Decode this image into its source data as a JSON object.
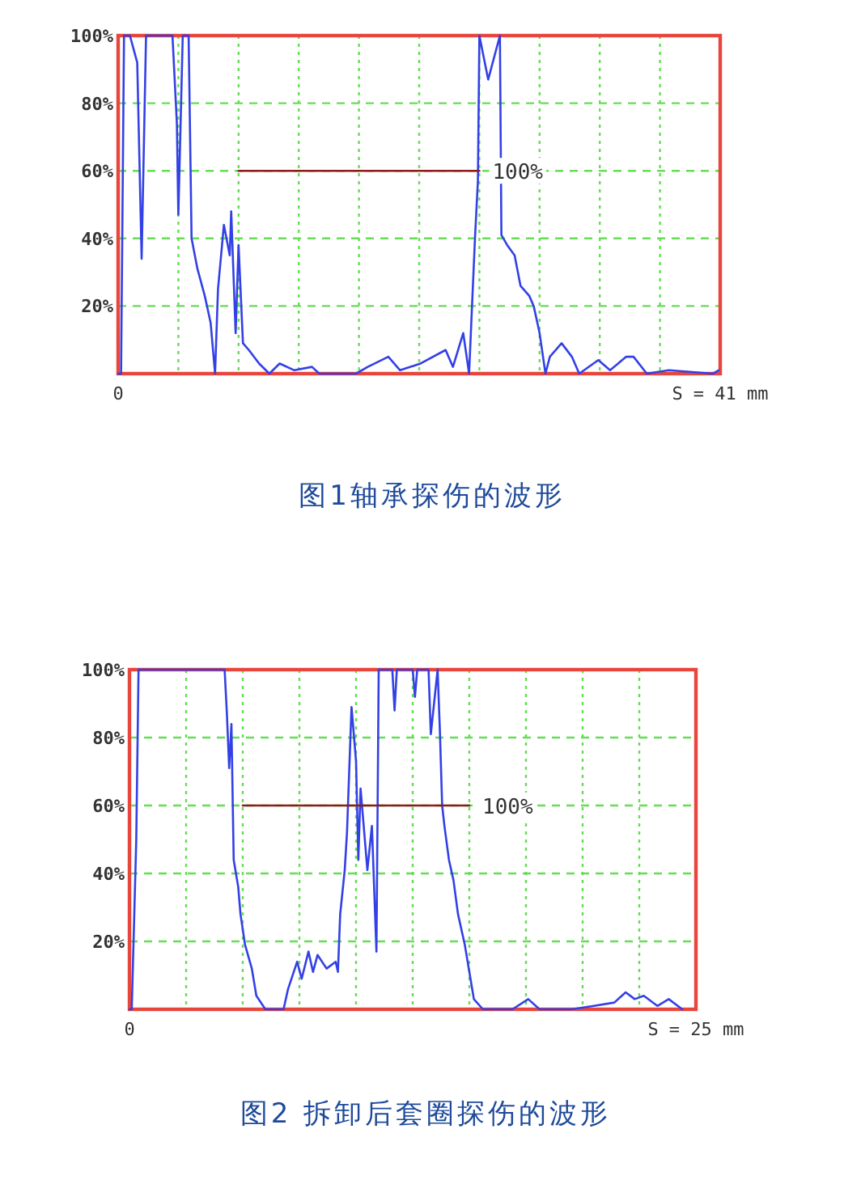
{
  "chart_data": [
    {
      "type": "line",
      "title": "图1轴承探伤的波形",
      "xlim": [
        0,
        41
      ],
      "xticks": [
        {
          "value": 0,
          "label": "0"
        },
        {
          "value": 4.1,
          "label": null
        },
        {
          "value": 8.2,
          "label": null
        },
        {
          "value": 12.3,
          "label": null
        },
        {
          "value": 16.4,
          "label": null
        },
        {
          "value": 20.5,
          "label": null
        },
        {
          "value": 24.6,
          "label": null
        },
        {
          "value": 28.7,
          "label": null
        },
        {
          "value": 32.8,
          "label": null
        },
        {
          "value": 36.9,
          "label": null
        },
        {
          "value": 41,
          "label": "S = 41 mm"
        }
      ],
      "ylim": [
        0,
        100
      ],
      "yticks": [
        {
          "value": 20,
          "label": "20%"
        },
        {
          "value": 40,
          "label": "40%"
        },
        {
          "value": 60,
          "label": "60%"
        },
        {
          "value": 80,
          "label": "80%"
        },
        {
          "value": 100,
          "label": "100%"
        }
      ],
      "grid": true,
      "series": [
        {
          "color": "#3340e6",
          "x": [
            0,
            0.2,
            0.4,
            0.8,
            1.3,
            1.6,
            1.9,
            3.7,
            4.0,
            4.1,
            4.4,
            4.8,
            5.0,
            5.4,
            5.9,
            6.3,
            6.6,
            6.8,
            7.2,
            7.6,
            7.7,
            8.0,
            8.2,
            8.5,
            8.9,
            9.6,
            10.3,
            11.0,
            12.0,
            13.2,
            13.7,
            16.2,
            17.0,
            18.4,
            19.2,
            20.6,
            22.3,
            22.8,
            23.5,
            23.9,
            24.1,
            24.3,
            24.5,
            24.6,
            25.2,
            26.0,
            26.1,
            26.5,
            27.0,
            27.4,
            28.0,
            28.3,
            28.7,
            29.1,
            29.4,
            30.2,
            30.9,
            31.4,
            32.7,
            33.5,
            34.6,
            35.1,
            36.0,
            37.5,
            40.5,
            40.9
          ],
          "values": [
            0,
            0,
            100,
            100,
            92,
            34,
            100,
            100,
            74,
            47,
            100,
            100,
            40,
            31,
            23,
            15,
            0,
            25,
            44,
            35,
            48,
            12,
            38,
            9,
            7,
            3,
            0,
            3,
            1,
            2,
            0,
            0,
            2,
            5,
            1,
            3,
            7,
            2,
            12,
            0,
            20,
            40,
            57,
            100,
            87,
            100,
            41,
            38,
            35,
            26,
            23,
            20,
            12,
            0,
            5,
            9,
            5,
            0,
            4,
            1,
            5,
            5,
            0,
            1,
            0,
            1
          ]
        },
        {
          "color": "#8b1c1c",
          "x": [
            8.2,
            24.6
          ],
          "values": [
            60,
            60
          ]
        }
      ],
      "annotations": [
        {
          "text": "100%",
          "x": 24.6,
          "y": 60
        }
      ]
    },
    {
      "type": "line",
      "title": "图2 拆卸后套圈探伤的波形",
      "xlim": [
        0,
        25
      ],
      "xticks": [
        {
          "value": 0,
          "label": "0"
        },
        {
          "value": 2.5,
          "label": null
        },
        {
          "value": 5,
          "label": null
        },
        {
          "value": 7.5,
          "label": null
        },
        {
          "value": 10,
          "label": null
        },
        {
          "value": 12.5,
          "label": null
        },
        {
          "value": 15,
          "label": null
        },
        {
          "value": 17.5,
          "label": null
        },
        {
          "value": 20,
          "label": null
        },
        {
          "value": 22.5,
          "label": null
        },
        {
          "value": 25,
          "label": "S = 25 mm"
        }
      ],
      "ylim": [
        0,
        100
      ],
      "yticks": [
        {
          "value": 20,
          "label": "20%"
        },
        {
          "value": 40,
          "label": "40%"
        },
        {
          "value": 60,
          "label": "60%"
        },
        {
          "value": 80,
          "label": "80%"
        },
        {
          "value": 100,
          "label": "100%"
        }
      ],
      "grid": true,
      "series": [
        {
          "color": "#3340e6",
          "x": [
            0,
            0.1,
            0.3,
            0.4,
            4.2,
            4.3,
            4.4,
            4.5,
            4.6,
            4.8,
            4.9,
            5.1,
            5.4,
            5.6,
            6.0,
            6.8,
            7.0,
            7.4,
            7.6,
            7.9,
            8.1,
            8.3,
            8.7,
            9.1,
            9.2,
            9.3,
            9.5,
            9.6,
            9.8,
            10.0,
            10.1,
            10.2,
            10.5,
            10.7,
            10.9,
            11.0,
            11.6,
            11.7,
            11.8,
            12.5,
            12.6,
            12.7,
            13.2,
            13.3,
            13.6,
            13.7,
            13.8,
            13.9,
            14.1,
            14.3,
            14.5,
            14.8,
            15.0,
            15.2,
            15.6,
            16.9,
            17.6,
            18.1,
            19.5,
            20.5,
            21.4,
            21.9,
            22.3,
            22.7,
            23.3,
            23.8,
            24.4
          ],
          "values": [
            0,
            0,
            50,
            100,
            100,
            87,
            71,
            84,
            44,
            36,
            28,
            19,
            12,
            4,
            0,
            0,
            6,
            14,
            9,
            17,
            11,
            16,
            12,
            14,
            11,
            28,
            41,
            52,
            89,
            73,
            44,
            65,
            41,
            54,
            17,
            100,
            100,
            88,
            100,
            100,
            92,
            100,
            100,
            81,
            100,
            82,
            60,
            54,
            44,
            38,
            28,
            19,
            11,
            3,
            0,
            0,
            3,
            0,
            0,
            1,
            2,
            5,
            3,
            4,
            1,
            3,
            0
          ]
        },
        {
          "color": "#8b1c1c",
          "x": [
            5,
            15
          ],
          "values": [
            60,
            60
          ]
        }
      ],
      "annotations": [
        {
          "text": "100%",
          "x": 15,
          "y": 60
        }
      ]
    }
  ]
}
